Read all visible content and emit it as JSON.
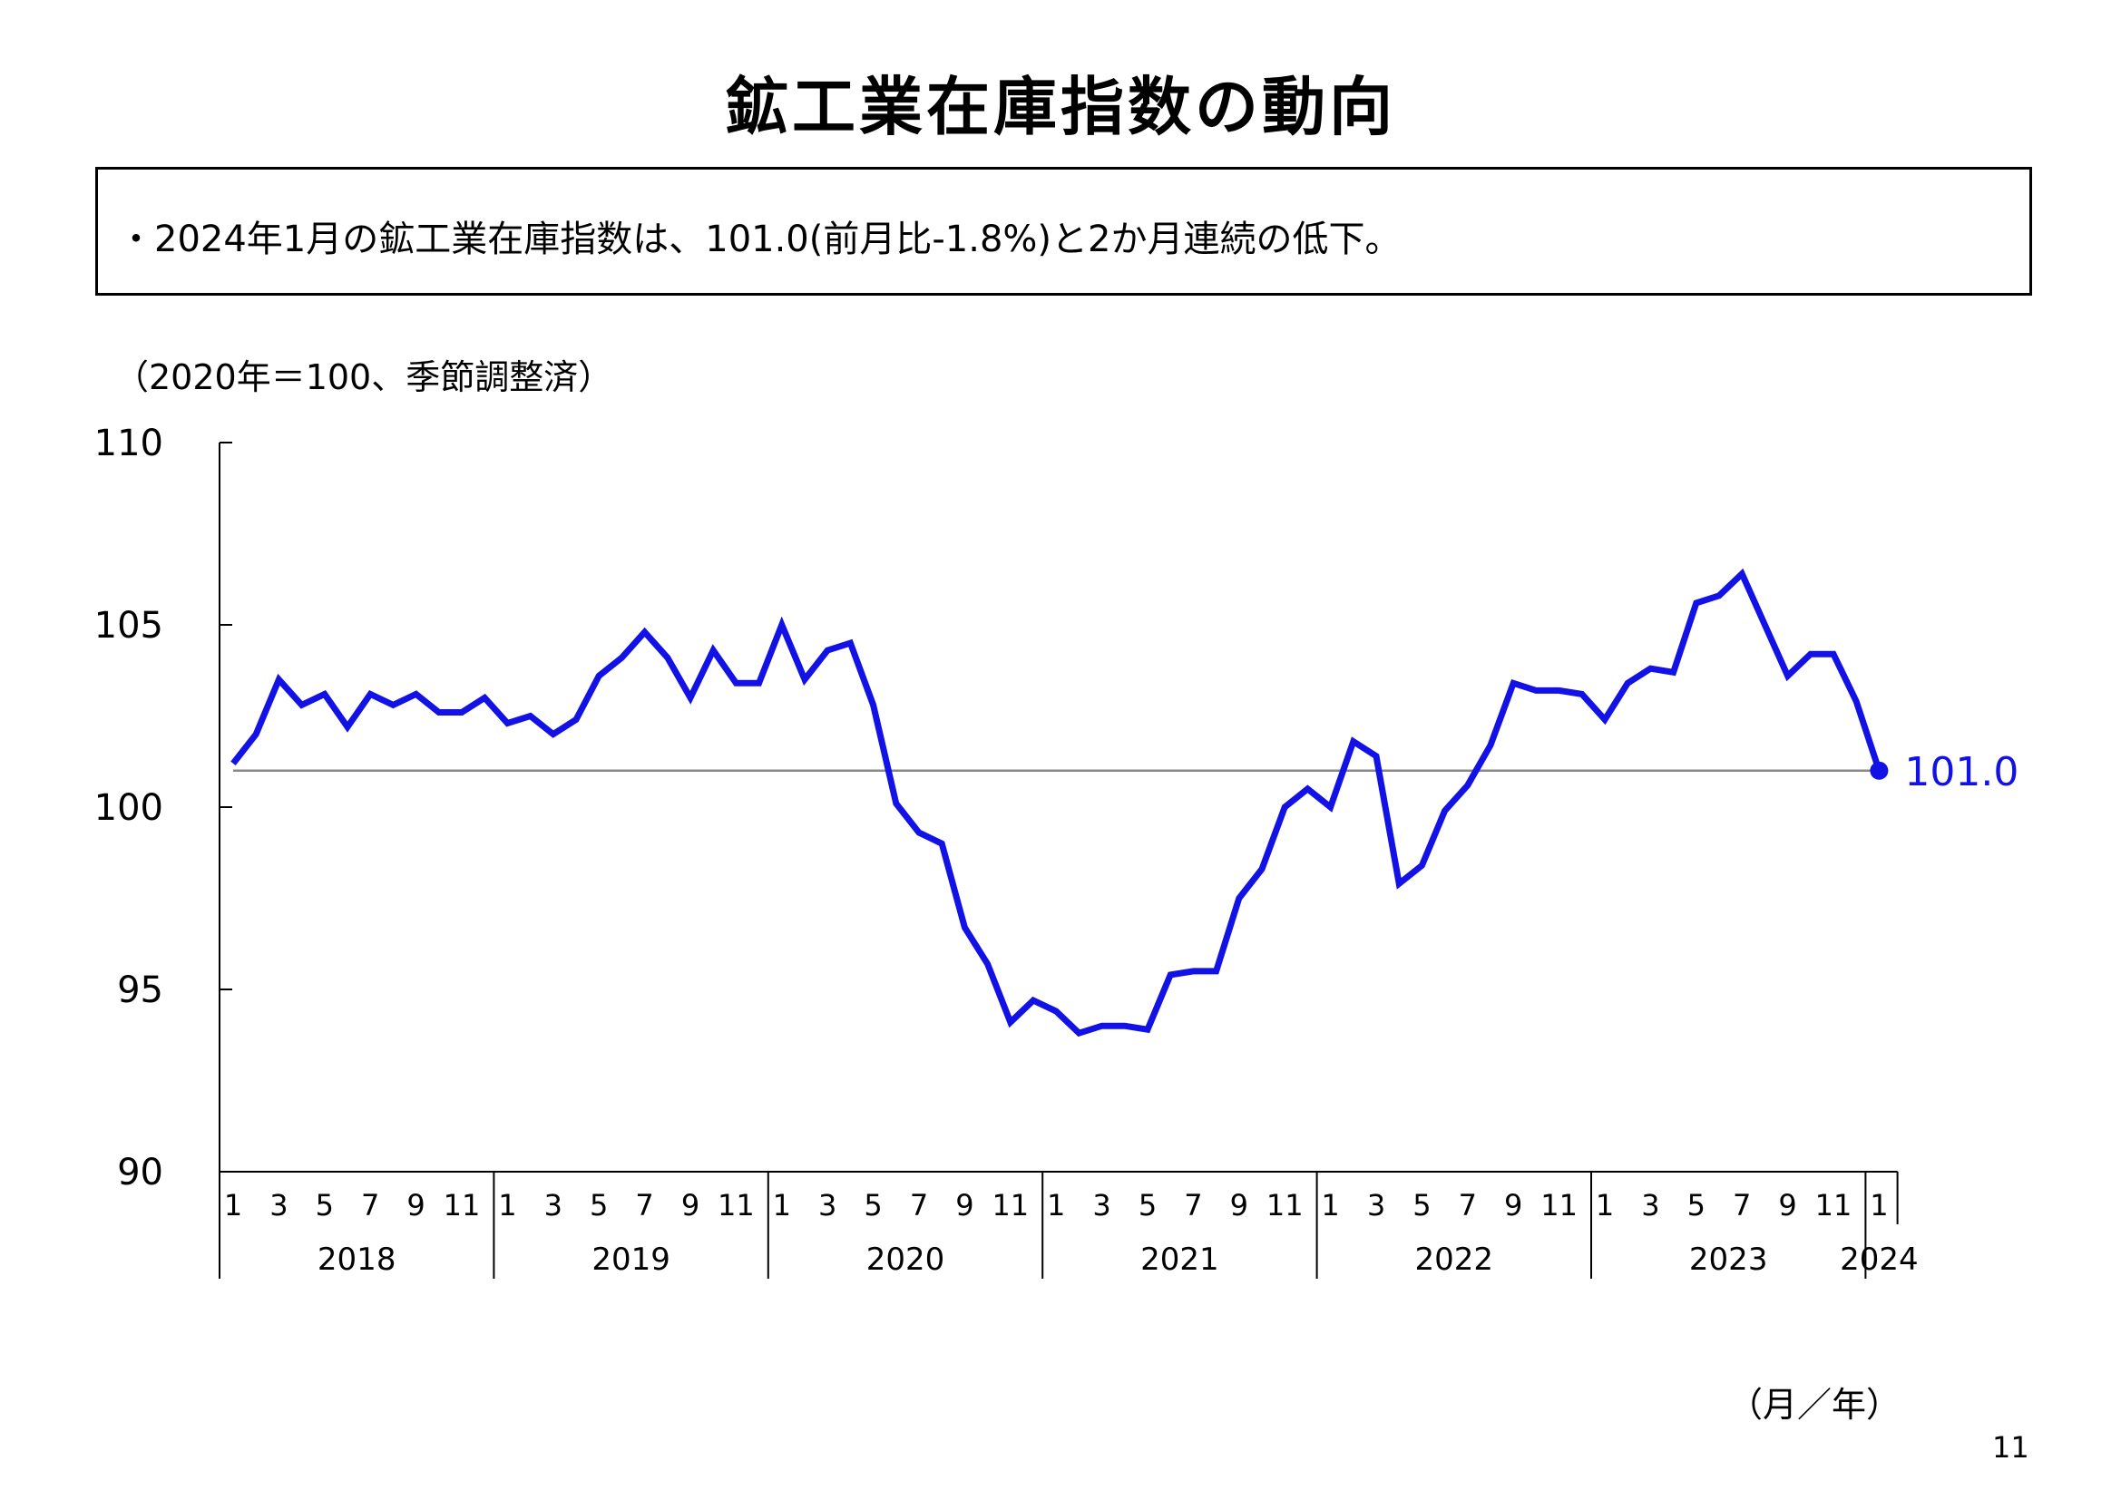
{
  "header": {
    "title": "鉱工業在庫指数の動向",
    "summary": "・2024年1月の鉱工業在庫指数は、101.0(前月比-1.8%)と2か月連続の低下。",
    "unit_note": "（2020年＝100、季節調整済）",
    "x_unit": "（月／年）",
    "page_number": "11"
  },
  "colors": {
    "series": "#1212e6",
    "reference_line": "#888888",
    "axis": "#000000"
  },
  "chart_data": {
    "type": "line",
    "title": "",
    "xlabel": "（月／年）",
    "ylabel": "（2020年＝100、季節調整済）",
    "ylim": [
      90,
      110
    ],
    "yticks": [
      90,
      95,
      100,
      105,
      110
    ],
    "grid": false,
    "month_labels": [
      "1",
      "3",
      "5",
      "7",
      "9",
      "11"
    ],
    "years": [
      "2018",
      "2019",
      "2020",
      "2021",
      "2022",
      "2023",
      "2024"
    ],
    "reference_value": 101.0,
    "end_label": "101.0",
    "series": [
      {
        "values": [
          101.2,
          102.0,
          103.5,
          102.8,
          103.1,
          102.2,
          103.1,
          102.8,
          103.1,
          102.6,
          102.6,
          103.0,
          102.3,
          102.5,
          102.0,
          102.4,
          103.6,
          104.1,
          104.8,
          104.1,
          103.0,
          104.3,
          103.4,
          103.4,
          105.0,
          103.5,
          104.3,
          104.5,
          102.8,
          100.1,
          99.3,
          99.0,
          96.7,
          95.7,
          94.1,
          94.7,
          94.4,
          93.8,
          94.0,
          94.0,
          93.9,
          95.4,
          95.5,
          95.5,
          97.5,
          98.3,
          100.0,
          100.5,
          100.0,
          101.8,
          101.4,
          97.9,
          98.4,
          99.9,
          100.6,
          101.7,
          103.4,
          103.2,
          103.2,
          103.1,
          102.4,
          103.4,
          103.8,
          103.7,
          105.6,
          105.8,
          106.4,
          105.0,
          103.6,
          104.2,
          104.2,
          102.9,
          101.0
        ]
      }
    ]
  }
}
